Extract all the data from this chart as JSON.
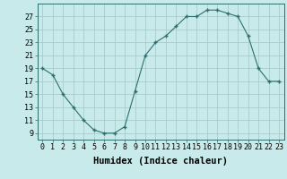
{
  "x": [
    0,
    1,
    2,
    3,
    4,
    5,
    6,
    7,
    8,
    9,
    10,
    11,
    12,
    13,
    14,
    15,
    16,
    17,
    18,
    19,
    20,
    21,
    22,
    23
  ],
  "y": [
    19,
    18,
    15,
    13,
    11,
    9.5,
    9,
    9,
    10,
    15.5,
    21,
    23,
    24,
    25.5,
    27,
    27,
    28,
    28,
    27.5,
    27,
    24,
    19,
    17,
    17
  ],
  "xlim": [
    -0.5,
    23.5
  ],
  "ylim": [
    8,
    29
  ],
  "yticks": [
    9,
    11,
    13,
    15,
    17,
    19,
    21,
    23,
    25,
    27
  ],
  "xticks": [
    0,
    1,
    2,
    3,
    4,
    5,
    6,
    7,
    8,
    9,
    10,
    11,
    12,
    13,
    14,
    15,
    16,
    17,
    18,
    19,
    20,
    21,
    22,
    23
  ],
  "xlabel": "Humidex (Indice chaleur)",
  "line_color": "#2d6e6e",
  "bg_color": "#c9eaea",
  "grid_color": "#a8cccc",
  "tick_label_fontsize": 6.0,
  "xlabel_fontsize": 7.5
}
